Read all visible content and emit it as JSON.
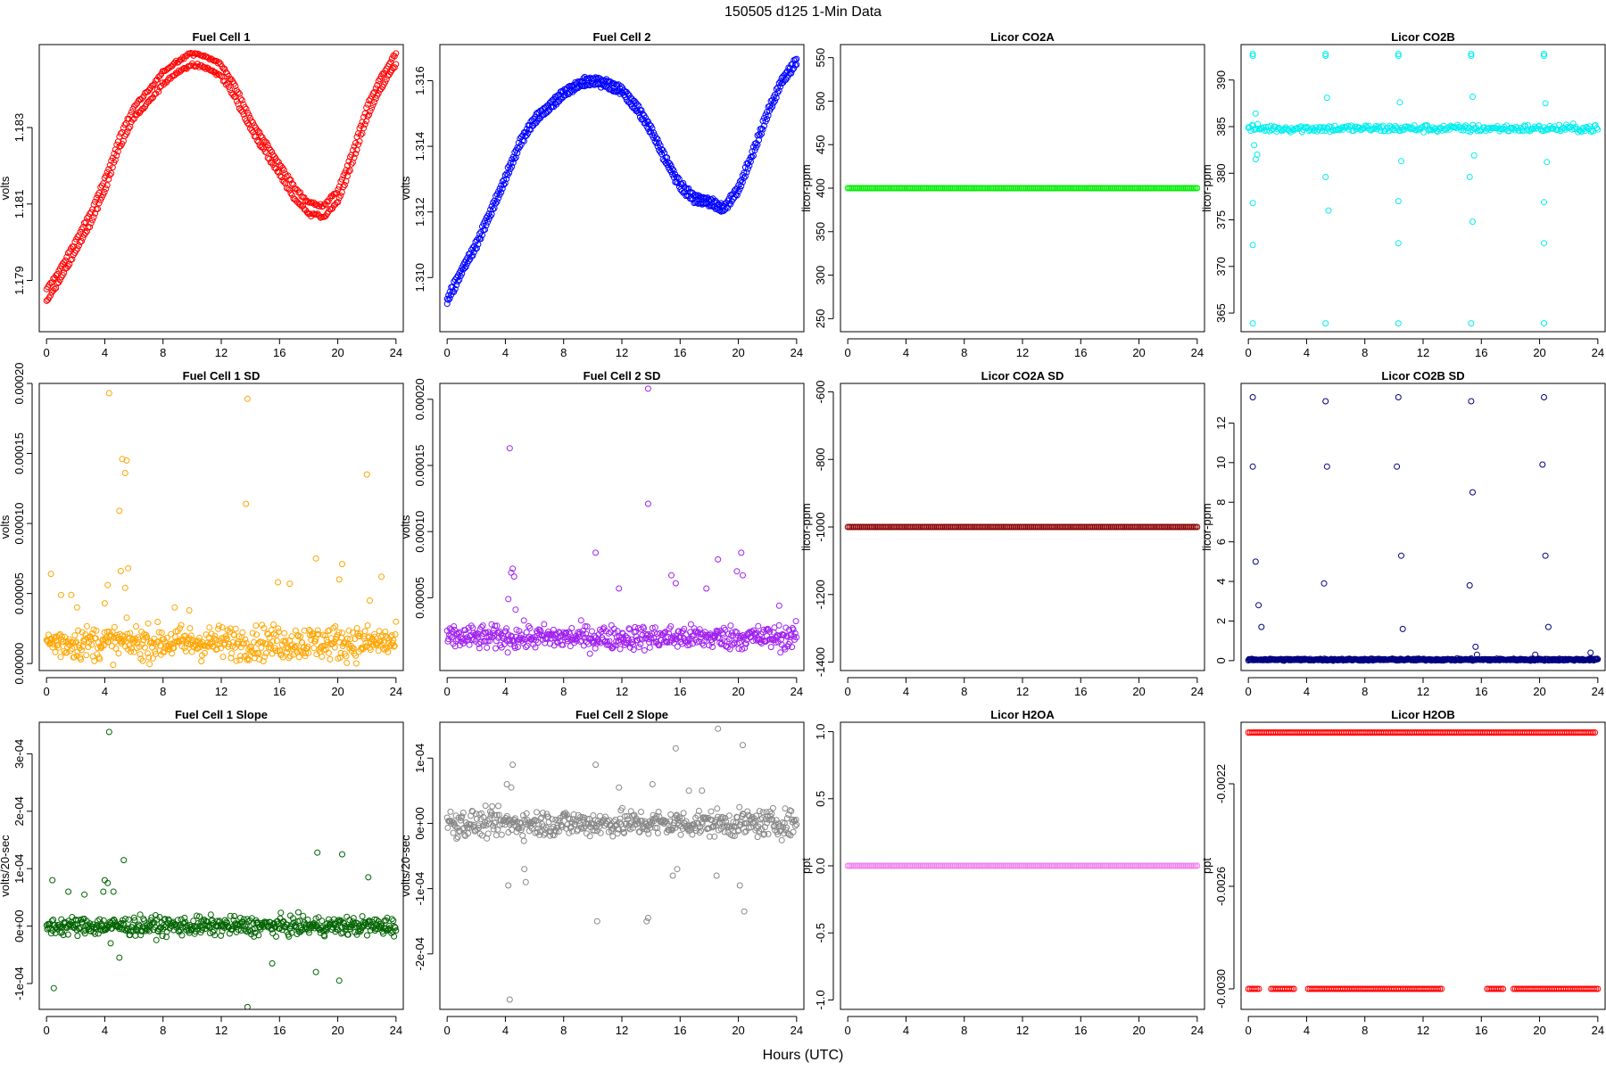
{
  "figure": {
    "title": "150505   d125   1-Min Data",
    "xlabel": "Hours (UTC)"
  },
  "chart_data": [
    {
      "type": "scatter",
      "title": "Fuel Cell 1",
      "xlabel": "",
      "ylabel": "volts",
      "xlim": [
        -0.5,
        24.5
      ],
      "ylim": [
        1.17766,
        1.18517
      ],
      "xticks": [
        0,
        4,
        8,
        12,
        16,
        20,
        24
      ],
      "yticks": [
        1.179,
        1.181,
        1.183
      ],
      "ytick_labels": [
        "1.179",
        "1.181",
        "1.183"
      ],
      "color": "#ff0000",
      "pattern": "dual_band",
      "series": [
        {
          "name": "",
          "x": [
            0,
            1,
            2,
            3,
            4,
            5,
            6,
            7,
            8,
            9,
            10,
            11,
            12,
            13,
            14,
            15,
            16,
            17,
            18,
            19,
            20,
            21,
            22,
            23,
            24
          ],
          "y": [
            1.1786,
            1.1792,
            1.1799,
            1.1806,
            1.1815,
            1.1826,
            1.1834,
            1.1838,
            1.1843,
            1.1846,
            1.1848,
            1.1847,
            1.1845,
            1.1839,
            1.1831,
            1.1825,
            1.1819,
            1.1813,
            1.1809,
            1.1808,
            1.1812,
            1.1822,
            1.1834,
            1.1842,
            1.1848
          ],
          "offset": 0.0003
        }
      ]
    },
    {
      "type": "scatter",
      "title": "Fuel Cell 2",
      "xlabel": "",
      "ylabel": "volts",
      "xlim": [
        -0.5,
        24.5
      ],
      "ylim": [
        1.30835,
        1.3171
      ],
      "xticks": [
        0,
        4,
        8,
        12,
        16,
        20,
        24
      ],
      "yticks": [
        1.31,
        1.312,
        1.314,
        1.316
      ],
      "ytick_labels": [
        "1.310",
        "1.312",
        "1.314",
        "1.316"
      ],
      "color": "#0000ff",
      "pattern": "dual_band",
      "series": [
        {
          "name": "",
          "x": [
            0,
            1,
            2,
            3,
            4,
            5,
            6,
            7,
            8,
            9,
            10,
            11,
            12,
            13,
            14,
            15,
            16,
            17,
            18,
            19,
            20,
            21,
            22,
            23,
            24
          ],
          "y": [
            1.3093,
            1.3102,
            1.311,
            1.312,
            1.313,
            1.3141,
            1.3148,
            1.3152,
            1.3156,
            1.3159,
            1.316,
            1.3159,
            1.3157,
            1.3152,
            1.3145,
            1.3136,
            1.3128,
            1.3124,
            1.3123,
            1.3121,
            1.3127,
            1.3138,
            1.315,
            1.316,
            1.3166
          ],
          "offset": 0.0002
        }
      ]
    },
    {
      "type": "scatter",
      "title": "Licor CO2A",
      "xlabel": "",
      "ylabel": "licor-ppm",
      "xlim": [
        -0.5,
        24.5
      ],
      "ylim": [
        235,
        565
      ],
      "xticks": [
        0,
        4,
        8,
        12,
        16,
        20,
        24
      ],
      "yticks": [
        250,
        300,
        350,
        400,
        450,
        500,
        550
      ],
      "ytick_labels": [
        "250",
        "300",
        "350",
        "400",
        "450",
        "500",
        "550"
      ],
      "color": "#00ee00",
      "pattern": "constant",
      "series": [
        {
          "name": "",
          "x": [
            0,
            24
          ],
          "y": [
            400,
            400
          ]
        }
      ]
    },
    {
      "type": "scatter",
      "title": "Licor CO2B",
      "xlabel": "",
      "ylabel": "licor-ppm",
      "xlim": [
        -0.5,
        24.5
      ],
      "ylim": [
        363.0,
        393.8
      ],
      "xticks": [
        0,
        4,
        8,
        12,
        16,
        20,
        24
      ],
      "yticks": [
        365,
        370,
        375,
        380,
        385,
        390
      ],
      "ytick_labels": [
        "365",
        "370",
        "375",
        "380",
        "385",
        "390"
      ],
      "color": "#00eeee",
      "pattern": "band_with_outliers",
      "series": [
        {
          "name": "",
          "x": [
            0,
            24
          ],
          "y": [
            384.8,
            384.8
          ],
          "spread": 0.4
        }
      ],
      "outliers": {
        "x": [
          0.3,
          0.3,
          0.5,
          0.4,
          0.5,
          0.6,
          0.3,
          0.3,
          5.3,
          5.3,
          5.4,
          5.3,
          5.5,
          10.3,
          10.3,
          10.4,
          10.3,
          10.5,
          10.3,
          15.3,
          15.3,
          15.4,
          15.2,
          15.5,
          15.4,
          20.3,
          20.3,
          20.4,
          20.3,
          20.5,
          20.3,
          0.3,
          5.3,
          10.3,
          15.3,
          20.3
        ],
        "y": [
          392.6,
          363.9,
          386.4,
          383.0,
          381.5,
          382.0,
          372.3,
          376.8,
          392.6,
          363.9,
          388.1,
          379.6,
          376.0,
          392.6,
          363.9,
          387.6,
          377.0,
          381.3,
          372.5,
          392.6,
          363.9,
          388.2,
          379.6,
          381.9,
          374.8,
          392.6,
          363.9,
          387.5,
          376.9,
          381.2,
          372.5,
          392.8,
          392.8,
          392.8,
          392.8,
          392.8
        ]
      }
    },
    {
      "type": "scatter",
      "title": "Fuel Cell 1 SD",
      "xlabel": "",
      "ylabel": "volts",
      "xlim": [
        -0.5,
        24.5
      ],
      "ylim": [
        -5e-06,
        0.0002
      ],
      "xticks": [
        0,
        4,
        8,
        12,
        16,
        20,
        24
      ],
      "yticks": [
        0,
        5e-05,
        0.0001,
        0.00015,
        0.0002
      ],
      "ytick_labels": [
        "0.00000",
        "0.00005",
        "0.00010",
        "0.00015",
        "0.00020"
      ],
      "color": "#ffa500",
      "pattern": "noise_band",
      "series": [
        {
          "name": "",
          "x": [
            0,
            24
          ],
          "y": [
            1.5e-05,
            1.5e-05
          ],
          "spread": 1.2e-05
        }
      ],
      "outliers": {
        "x": [
          4.3,
          13.8,
          5.2,
          5.5,
          5.4,
          5.0,
          13.7,
          22.0,
          18.5,
          20.3,
          0.3,
          1.0,
          1.7,
          4.2,
          5.4,
          5.6,
          5.1,
          15.9,
          16.7,
          20.1,
          23.0,
          22.2,
          2.1,
          4.0,
          8.8,
          9.8
        ],
        "y": [
          0.000193,
          0.000189,
          0.000146,
          0.000145,
          0.000136,
          0.000109,
          0.000114,
          0.000135,
          7.5e-05,
          7.1e-05,
          6.4e-05,
          4.9e-05,
          4.9e-05,
          5.6e-05,
          5.4e-05,
          6.8e-05,
          6.6e-05,
          5.8e-05,
          5.7e-05,
          6e-05,
          6.2e-05,
          4.5e-05,
          4e-05,
          4.3e-05,
          4e-05,
          3.8e-05
        ]
      }
    },
    {
      "type": "scatter",
      "title": "Fuel Cell 2 SD",
      "xlabel": "",
      "ylabel": "volts",
      "xlim": [
        -0.5,
        24.5
      ],
      "ylim": [
        -5e-06,
        0.000212
      ],
      "xticks": [
        0,
        4,
        8,
        12,
        16,
        20,
        24
      ],
      "yticks": [
        5e-05,
        0.0001,
        0.00015,
        0.0002
      ],
      "ytick_labels": [
        "0.00005",
        "0.00010",
        "0.00015",
        "0.00020"
      ],
      "color": "#a020f0",
      "pattern": "noise_band",
      "series": [
        {
          "name": "",
          "x": [
            0,
            24
          ],
          "y": [
            2e-05,
            2e-05
          ],
          "spread": 9e-06
        }
      ],
      "outliers": {
        "x": [
          13.8,
          4.3,
          13.8,
          10.2,
          18.6,
          20.2,
          20.3,
          19.9,
          4.4,
          4.5,
          4.6,
          4.2,
          15.4,
          15.7,
          11.8,
          22.8,
          17.8,
          4.7
        ],
        "y": [
          0.000208,
          0.000163,
          0.000121,
          8.4e-05,
          7.9e-05,
          8.4e-05,
          6.7e-05,
          7e-05,
          6.9e-05,
          7.2e-05,
          6.6e-05,
          4.9e-05,
          6.7e-05,
          6.1e-05,
          5.7e-05,
          4.4e-05,
          5.7e-05,
          4.1e-05
        ]
      }
    },
    {
      "type": "scatter",
      "title": "Licor CO2A SD",
      "xlabel": "",
      "ylabel": "licor-ppm",
      "xlim": [
        -0.5,
        24.5
      ],
      "ylim": [
        -1425,
        -575
      ],
      "xticks": [
        0,
        4,
        8,
        12,
        16,
        20,
        24
      ],
      "yticks": [
        -1400,
        -1200,
        -1000,
        -800,
        -600
      ],
      "ytick_labels": [
        "-1400",
        "-1200",
        "-1000",
        "-800",
        "-600"
      ],
      "color": "#8b0000",
      "pattern": "constant",
      "series": [
        {
          "name": "",
          "x": [
            0,
            24
          ],
          "y": [
            -1000,
            -1000
          ]
        }
      ]
    },
    {
      "type": "scatter",
      "title": "Licor CO2B SD",
      "xlabel": "",
      "ylabel": "licor-ppm",
      "xlim": [
        -0.5,
        24.5
      ],
      "ylim": [
        -0.5,
        14.0
      ],
      "xticks": [
        0,
        4,
        8,
        12,
        16,
        20,
        24
      ],
      "yticks": [
        0,
        2,
        4,
        6,
        8,
        10,
        12
      ],
      "ytick_labels": [
        "0",
        "2",
        "4",
        "6",
        "8",
        "10",
        "12"
      ],
      "color": "#000080",
      "pattern": "noise_band",
      "series": [
        {
          "name": "",
          "x": [
            0,
            24
          ],
          "y": [
            0.05,
            0.05
          ],
          "spread": 0.05
        }
      ],
      "outliers": {
        "x": [
          0.3,
          5.3,
          10.3,
          15.3,
          20.3,
          0.3,
          5.4,
          10.2,
          15.4,
          20.2,
          0.5,
          5.2,
          10.5,
          15.2,
          20.4,
          0.7,
          0.9,
          10.6,
          20.6,
          15.6,
          15.7,
          19.7,
          23.5
        ],
        "y": [
          13.3,
          13.1,
          13.3,
          13.1,
          13.3,
          9.8,
          9.8,
          9.8,
          8.5,
          9.9,
          5.0,
          3.9,
          5.3,
          3.8,
          5.3,
          2.8,
          1.7,
          1.6,
          1.7,
          0.7,
          0.3,
          0.3,
          0.4
        ]
      }
    },
    {
      "type": "scatter",
      "title": "Fuel Cell 1 Slope",
      "xlabel": "",
      "ylabel": "volts/20-sec",
      "xlim": [
        -0.5,
        24.5
      ],
      "ylim": [
        -0.000145,
        0.000355
      ],
      "xticks": [
        0,
        4,
        8,
        12,
        16,
        20,
        24
      ],
      "yticks": [
        -0.0001,
        0,
        0.0001,
        0.0002,
        0.0003
      ],
      "ytick_labels": [
        "-1e-04",
        "0e+00",
        "1e-04",
        "2e-04",
        "3e-04"
      ],
      "color": "#006400",
      "pattern": "noise_band",
      "series": [
        {
          "name": "",
          "x": [
            0,
            24
          ],
          "y": [
            0.0,
            0.0
          ],
          "spread": 1.6e-05
        }
      ],
      "outliers": {
        "x": [
          4.3,
          13.8,
          5.3,
          18.6,
          20.3,
          0.5,
          4.0,
          4.2,
          4.6,
          22.1,
          0.4,
          5.0,
          15.5,
          18.5,
          20.1,
          3.9,
          4.4,
          1.5,
          2.6
        ],
        "y": [
          0.000338,
          -0.000141,
          0.000115,
          0.000128,
          0.000125,
          -0.000108,
          8e-05,
          7.5e-05,
          6e-05,
          8.5e-05,
          8e-05,
          -5.5e-05,
          -6.5e-05,
          -8e-05,
          -9.5e-05,
          6e-05,
          -3e-05,
          6e-05,
          5.5e-05
        ]
      }
    },
    {
      "type": "scatter",
      "title": "Fuel Cell 2 Slope",
      "xlabel": "",
      "ylabel": "volts/20-sec",
      "xlim": [
        -0.5,
        24.5
      ],
      "ylim": [
        -0.000285,
        0.000155
      ],
      "xticks": [
        0,
        4,
        8,
        12,
        16,
        20,
        24
      ],
      "yticks": [
        -0.0002,
        -0.0001,
        0,
        0.0001
      ],
      "ytick_labels": [
        "-2e-04",
        "-1e-04",
        "0e+00",
        "1e-04"
      ],
      "color": "#888888",
      "pattern": "noise_band",
      "series": [
        {
          "name": "",
          "x": [
            0,
            24
          ],
          "y": [
            0.0,
            0.0
          ],
          "spread": 2e-05
        }
      ],
      "outliers": {
        "x": [
          4.3,
          18.6,
          20.3,
          10.2,
          15.7,
          13.8,
          13.7,
          4.2,
          5.4,
          5.3,
          15.5,
          15.8,
          18.5,
          20.1,
          10.3,
          20.4,
          4.5,
          4.1,
          4.4,
          14.1,
          11.8,
          16.6,
          17.5
        ],
        "y": [
          -0.00027,
          0.000145,
          0.00012,
          9e-05,
          0.000115,
          -0.000145,
          -0.00015,
          -9.5e-05,
          -9e-05,
          -7e-05,
          -8e-05,
          -7e-05,
          -8e-05,
          -9.5e-05,
          -0.00015,
          -0.000135,
          9e-05,
          6e-05,
          5.5e-05,
          6e-05,
          5.5e-05,
          5e-05,
          5e-05
        ]
      }
    },
    {
      "type": "scatter",
      "title": "Licor H2OA",
      "xlabel": "",
      "ylabel": "ppt",
      "xlim": [
        -0.5,
        24.5
      ],
      "ylim": [
        -1.07,
        1.07
      ],
      "xticks": [
        0,
        4,
        8,
        12,
        16,
        20,
        24
      ],
      "yticks": [
        -1.0,
        -0.5,
        0.0,
        0.5,
        1.0
      ],
      "ytick_labels": [
        "-1.0",
        "-0.5",
        "0.0",
        "0.5",
        "1.0"
      ],
      "color": "#ee82ee",
      "pattern": "constant",
      "series": [
        {
          "name": "",
          "x": [
            0,
            24
          ],
          "y": [
            0,
            0
          ]
        }
      ]
    },
    {
      "type": "scatter",
      "title": "Licor H2OB",
      "xlabel": "",
      "ylabel": "ppt",
      "xlim": [
        -0.5,
        24.5
      ],
      "ylim": [
        -0.00308,
        -0.00196
      ],
      "xticks": [
        0,
        4,
        8,
        12,
        16,
        20,
        24
      ],
      "yticks": [
        -0.003,
        -0.0026,
        -0.0022
      ],
      "ytick_labels": [
        "-0.0030",
        "-0.0026",
        "-0.0022"
      ],
      "color": "#ff0000",
      "pattern": "two_levels",
      "series": [
        {
          "name": "",
          "x": [
            0,
            23.8
          ],
          "y": [
            -0.002,
            -0.002
          ]
        },
        {
          "name": "",
          "x": [
            0,
            24
          ],
          "y": [
            -0.003,
            -0.003
          ]
        }
      ]
    }
  ]
}
